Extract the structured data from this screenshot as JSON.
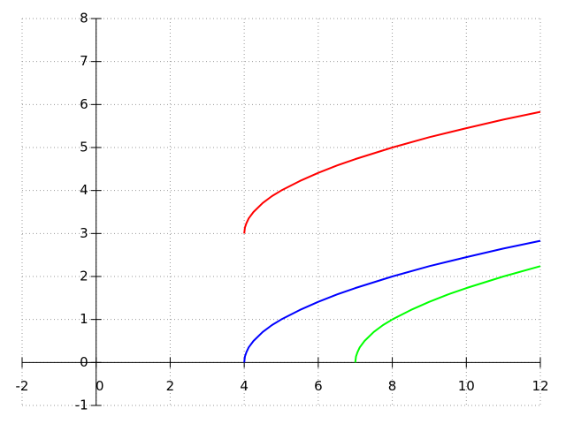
{
  "chart_data": {
    "type": "line",
    "xlim": [
      -2,
      12
    ],
    "ylim": [
      -1,
      8
    ],
    "xticks": [
      -2,
      0,
      2,
      4,
      6,
      8,
      10,
      12
    ],
    "yticks": [
      -1,
      0,
      1,
      2,
      3,
      4,
      5,
      6,
      7,
      8
    ],
    "grid": true,
    "series": [
      {
        "color": "#ff0000",
        "x": [
          4,
          4.02,
          4.06,
          4.12,
          4.25,
          4.5,
          4.75,
          5,
          5.5,
          6,
          6.5,
          7,
          8,
          9,
          10,
          11,
          12
        ],
        "values": [
          3,
          3.14,
          3.24,
          3.35,
          3.5,
          3.71,
          3.87,
          4,
          4.22,
          4.41,
          4.58,
          4.73,
          5,
          5.24,
          5.45,
          5.65,
          5.83
        ]
      },
      {
        "color": "#0000ff",
        "x": [
          4,
          4.02,
          4.06,
          4.12,
          4.25,
          4.5,
          4.75,
          5,
          5.5,
          6,
          6.5,
          7,
          8,
          9,
          10,
          11,
          12
        ],
        "values": [
          0,
          0.14,
          0.24,
          0.35,
          0.5,
          0.71,
          0.87,
          1,
          1.22,
          1.41,
          1.58,
          1.73,
          2,
          2.24,
          2.45,
          2.65,
          2.83
        ]
      },
      {
        "color": "#00ff00",
        "x": [
          7,
          7.02,
          7.06,
          7.12,
          7.25,
          7.5,
          7.75,
          8,
          8.5,
          9,
          9.5,
          10,
          11,
          12
        ],
        "values": [
          0,
          0.14,
          0.24,
          0.35,
          0.5,
          0.71,
          0.87,
          1,
          1.22,
          1.41,
          1.58,
          1.73,
          2,
          2.24
        ]
      }
    ]
  }
}
